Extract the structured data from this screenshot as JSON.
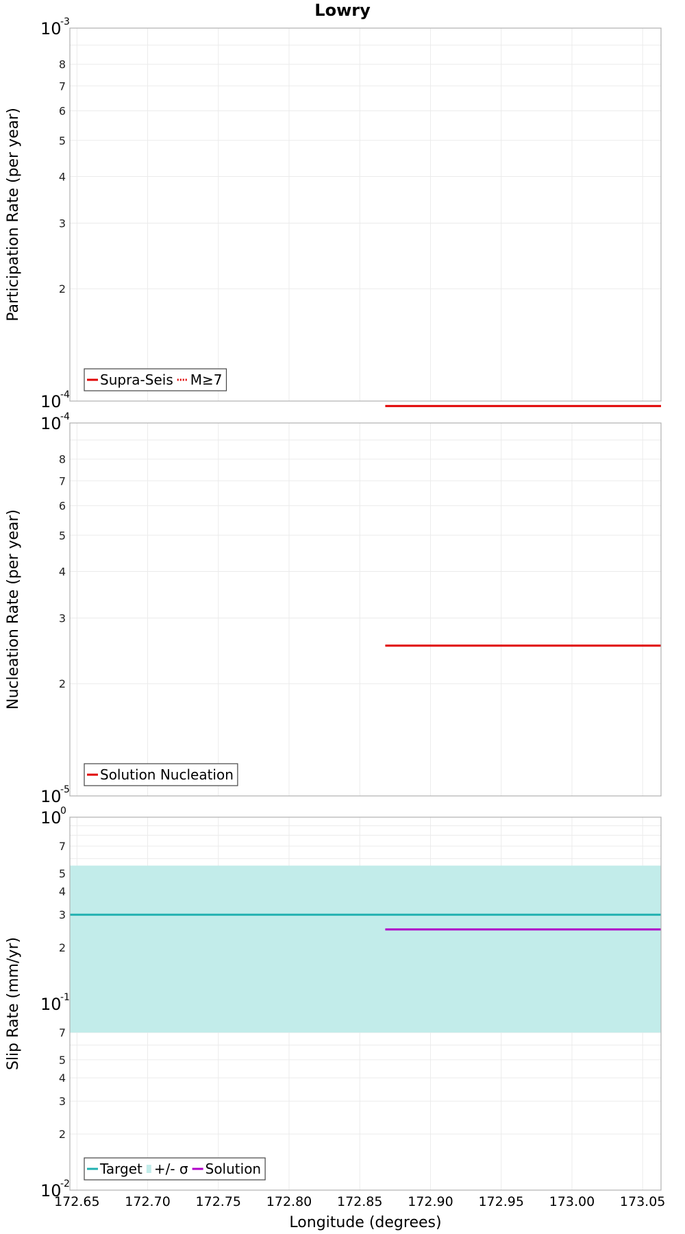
{
  "title": "Lowry",
  "chart_data": [
    {
      "type": "line",
      "ylabel": "Participation Rate (per year)",
      "yscale": "log",
      "ylim": [
        0.0001,
        0.001
      ],
      "xlim": [
        172.645,
        173.063
      ],
      "grid": true,
      "legend": {
        "position": "bottom-left",
        "entries": [
          {
            "label": "Supra-Seis",
            "color": "#e00000",
            "style": "solid"
          },
          {
            "label": "M≥7",
            "color": "#e00000",
            "style": "dotted"
          }
        ]
      },
      "series": [
        {
          "name": "Supra-Seis",
          "color": "#e00000",
          "style": "solid",
          "x": [
            172.868,
            173.063
          ],
          "y": [
            9.7e-05,
            9.7e-05
          ]
        }
      ]
    },
    {
      "type": "line",
      "ylabel": "Nucleation Rate (per year)",
      "yscale": "log",
      "ylim": [
        1e-05,
        0.0001
      ],
      "xlim": [
        172.645,
        173.063
      ],
      "grid": true,
      "legend": {
        "position": "bottom-left",
        "entries": [
          {
            "label": "Solution Nucleation",
            "color": "#e00000",
            "style": "solid"
          }
        ]
      },
      "series": [
        {
          "name": "Solution Nucleation",
          "color": "#e00000",
          "style": "solid",
          "x": [
            172.868,
            173.063
          ],
          "y": [
            2.53e-05,
            2.53e-05
          ]
        }
      ]
    },
    {
      "type": "line",
      "ylabel": "Slip Rate (mm/yr)",
      "xlabel": "Longitude (degrees)",
      "yscale": "log",
      "ylim": [
        0.01,
        1
      ],
      "xlim": [
        172.645,
        173.063
      ],
      "grid": true,
      "legend": {
        "position": "bottom-left",
        "entries": [
          {
            "label": "Target",
            "color": "#20b0b0",
            "style": "solid"
          },
          {
            "label": "+/- σ",
            "color": "#c2ecea",
            "style": "fill"
          },
          {
            "label": "Solution",
            "color": "#b000c8",
            "style": "solid"
          }
        ]
      },
      "band": {
        "name": "+/- σ",
        "color": "#c2ecea",
        "x": [
          172.645,
          173.063
        ],
        "low": 0.07,
        "high": 0.55
      },
      "series": [
        {
          "name": "Target",
          "color": "#20b0b0",
          "style": "solid",
          "x": [
            172.645,
            173.063
          ],
          "y": [
            0.3,
            0.3
          ]
        },
        {
          "name": "Solution",
          "color": "#b000c8",
          "style": "solid",
          "x": [
            172.868,
            173.063
          ],
          "y": [
            0.25,
            0.25
          ]
        }
      ]
    }
  ],
  "x_ticks": [
    "172.65",
    "172.70",
    "172.75",
    "172.80",
    "172.85",
    "172.90",
    "172.95",
    "173.00",
    "173.05"
  ],
  "x_tick_values": [
    172.65,
    172.7,
    172.75,
    172.8,
    172.85,
    172.9,
    172.95,
    173.0,
    173.05
  ],
  "y_ticks": [
    {
      "major_base": "10",
      "major_top_exp": "-3",
      "major_bottom_exp": "-4",
      "minor": [
        "2",
        "3",
        "4",
        "5",
        "6",
        "7",
        "8"
      ]
    },
    {
      "major_base": "10",
      "major_top_exp": "-4",
      "major_bottom_exp": "-5",
      "minor": [
        "2",
        "3",
        "4",
        "5",
        "6",
        "7",
        "8"
      ]
    },
    {
      "major_base": "10",
      "major_top_exp": "0",
      "major_mid_exp": "-1",
      "major_bottom_exp": "-2",
      "minor_upper": [
        "2",
        "3",
        "4",
        "5",
        "7"
      ],
      "minor_lower": [
        "2",
        "3",
        "4",
        "5",
        "7"
      ]
    }
  ]
}
